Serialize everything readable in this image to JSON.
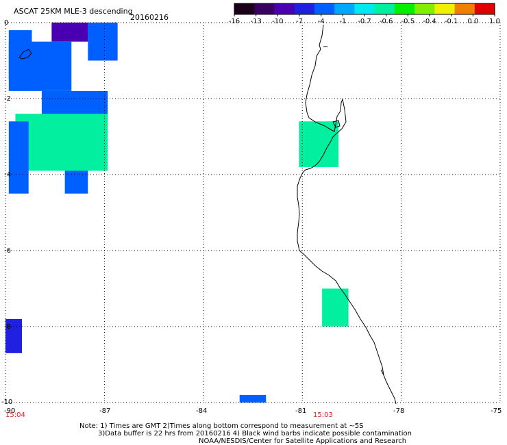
{
  "header": {
    "title": "ASCAT 25KM MLE-3 descending",
    "date": "20160216"
  },
  "colorbar": {
    "labels": [
      "-16",
      "-13",
      "-10",
      "-7",
      "-4",
      "-1",
      "-0.7",
      "-0.6",
      "-0.5",
      "-0.4",
      "-0.1",
      "0.0",
      "1.0"
    ],
    "colors": [
      "#1a0018",
      "#3a0060",
      "#4a00b0",
      "#2020e0",
      "#0060ff",
      "#00a8ff",
      "#00e8f0",
      "#00f0a0",
      "#00f000",
      "#80f000",
      "#f0f000",
      "#f08000",
      "#e00000"
    ]
  },
  "map": {
    "lon_ticks": [
      "-90",
      "-87",
      "-84",
      "-81",
      "-78",
      "-75"
    ],
    "lat_ticks": [
      "0",
      "-2",
      "-4",
      "-6",
      "-8",
      "-10"
    ],
    "time_labels": [
      {
        "text": "15:04",
        "lon": -90
      },
      {
        "text": "15:03",
        "lon": -80.4
      }
    ],
    "colors": {
      "coast": "#000000",
      "grid": "#000000",
      "time_label": "#e0201e"
    }
  },
  "chart_data": {
    "type": "heatmap",
    "xlim": [
      -90,
      -75
    ],
    "ylim": [
      -10,
      0
    ],
    "xlabel": "",
    "ylabel": "",
    "grid": true,
    "cells": [
      {
        "lon": [
          -89.9,
          -89.2
        ],
        "lat": [
          -0.2,
          -1.5
        ],
        "value": -2.5
      },
      {
        "lon": [
          -88.6,
          -87.5
        ],
        "lat": [
          0.0,
          -0.5
        ],
        "value": -8
      },
      {
        "lon": [
          -87.5,
          -86.6
        ],
        "lat": [
          0.0,
          -1.0
        ],
        "value": -2.5
      },
      {
        "lon": [
          -89.9,
          -88.0
        ],
        "lat": [
          -0.5,
          -1.8
        ],
        "value": -2
      },
      {
        "lon": [
          -88.9,
          -86.9
        ],
        "lat": [
          -1.8,
          -2.6
        ],
        "value": -1.5
      },
      {
        "lon": [
          -89.7,
          -86.9
        ],
        "lat": [
          -2.4,
          -3.9
        ],
        "value": -0.6
      },
      {
        "lon": [
          -89.9,
          -89.3
        ],
        "lat": [
          -2.6,
          -4.5
        ],
        "value": -2.5
      },
      {
        "lon": [
          -88.2,
          -87.5
        ],
        "lat": [
          -3.9,
          -4.5
        ],
        "value": -3
      },
      {
        "lon": [
          -81.1,
          -79.9
        ],
        "lat": [
          -2.6,
          -3.8
        ],
        "value": -0.6
      },
      {
        "lon": [
          -80.4,
          -79.6
        ],
        "lat": [
          -7.0,
          -8.0
        ],
        "value": -0.6
      },
      {
        "lon": [
          -90.0,
          -89.5
        ],
        "lat": [
          -7.8,
          -8.7
        ],
        "value": -5
      },
      {
        "lon": [
          -82.9,
          -82.1
        ],
        "lat": [
          -9.8,
          -10.0
        ],
        "value": -3
      }
    ]
  },
  "footer": {
    "note_line1": "Note: 1) Times are GMT 2)Times along bottom correspond to measurement at ~5S",
    "note_line2": "3)Data buffer is 22 hrs from 20160216 4) Black wind barbs indicate possible contamination",
    "credit": "NOAA/NESDIS/Center for Satellite Applications and Research"
  }
}
